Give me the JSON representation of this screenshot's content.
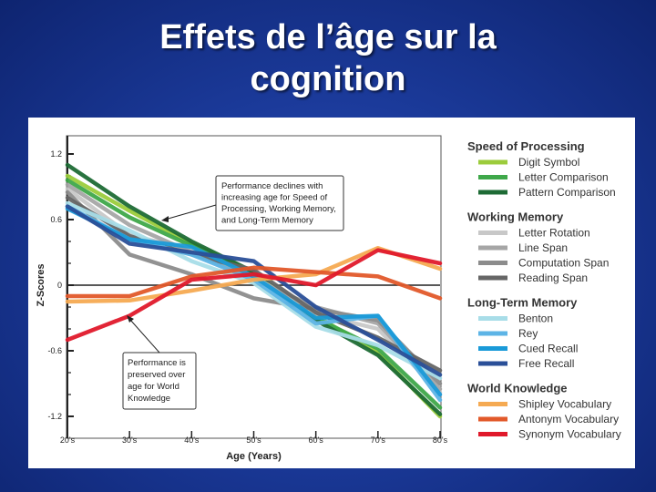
{
  "slide": {
    "title_line1": "Effets de l’âge sur la",
    "title_line2": "cognition"
  },
  "chart_data": {
    "type": "line",
    "title": "",
    "xlabel": "Age (Years)",
    "ylabel": "Z-Scores",
    "categories": [
      "20's",
      "30's",
      "40's",
      "50's",
      "60's",
      "70's",
      "80's"
    ],
    "y_ticks": [
      "1.2",
      "0.6",
      "0",
      "-0.6",
      "-1.2"
    ],
    "ylim": [
      -1.2,
      1.2
    ],
    "grid": false,
    "baseline": 0,
    "legend_position": "right",
    "groups": [
      {
        "name": "Speed of Processing",
        "series": [
          {
            "name": "Digit Symbol",
            "color": "#9ccc3c",
            "values": [
              1.0,
              0.68,
              0.38,
              0.12,
              -0.28,
              -0.62,
              -1.2
            ]
          },
          {
            "name": "Letter Comparison",
            "color": "#3fa84a",
            "values": [
              0.96,
              0.62,
              0.36,
              0.1,
              -0.3,
              -0.58,
              -1.12
            ]
          },
          {
            "name": "Pattern Comparison",
            "color": "#1e6b35",
            "values": [
              1.1,
              0.72,
              0.4,
              0.12,
              -0.32,
              -0.64,
              -1.18
            ]
          }
        ]
      },
      {
        "name": "Working Memory",
        "series": [
          {
            "name": "Letter Rotation",
            "color": "#c8c8c8",
            "values": [
              0.88,
              0.46,
              0.32,
              0.08,
              -0.26,
              -0.4,
              -0.98
            ]
          },
          {
            "name": "Line Span",
            "color": "#a6a6a6",
            "values": [
              0.92,
              0.55,
              0.3,
              0.05,
              -0.2,
              -0.35,
              -0.95
            ]
          },
          {
            "name": "Computation Span",
            "color": "#8c8c8c",
            "values": [
              0.85,
              0.28,
              0.1,
              -0.12,
              -0.22,
              -0.32,
              -0.9
            ]
          },
          {
            "name": "Reading Span",
            "color": "#666666",
            "values": [
              0.8,
              0.45,
              0.28,
              0.14,
              -0.25,
              -0.48,
              -0.78
            ]
          }
        ]
      },
      {
        "name": "Long-Term Memory",
        "series": [
          {
            "name": "Benton",
            "color": "#a8dde8",
            "values": [
              0.75,
              0.5,
              0.22,
              0.02,
              -0.38,
              -0.55,
              -0.85
            ]
          },
          {
            "name": "Rey",
            "color": "#5db4e6",
            "values": [
              0.72,
              0.42,
              0.28,
              0.05,
              -0.35,
              -0.28,
              -1.05
            ]
          },
          {
            "name": "Cued Recall",
            "color": "#1a9ad8",
            "values": [
              0.7,
              0.42,
              0.35,
              0.08,
              -0.3,
              -0.28,
              -1.0
            ]
          },
          {
            "name": "Free Recall",
            "color": "#2a4f98",
            "values": [
              0.72,
              0.38,
              0.3,
              0.22,
              -0.2,
              -0.5,
              -0.82
            ]
          }
        ]
      },
      {
        "name": "World Knowledge",
        "series": [
          {
            "name": "Shipley Vocabulary",
            "color": "#f5aa52",
            "values": [
              -0.15,
              -0.14,
              -0.05,
              0.05,
              0.1,
              0.34,
              0.15
            ]
          },
          {
            "name": "Antonym Vocabulary",
            "color": "#e2592a",
            "values": [
              -0.1,
              -0.1,
              0.08,
              0.16,
              0.12,
              0.08,
              -0.12
            ]
          },
          {
            "name": "Synonym Vocabulary",
            "color": "#e0192b",
            "values": [
              -0.5,
              -0.28,
              0.05,
              0.1,
              0.0,
              0.32,
              0.2
            ]
          }
        ]
      }
    ],
    "annotations": [
      {
        "lines": [
          "Performance  declines  with",
          "increasing age for Speed of",
          "Processing, Working Memory,",
          "and Long-Term Memory"
        ]
      },
      {
        "lines": [
          "Performance is",
          "preserved over",
          "age  for  World",
          "Knowledge"
        ]
      }
    ]
  }
}
